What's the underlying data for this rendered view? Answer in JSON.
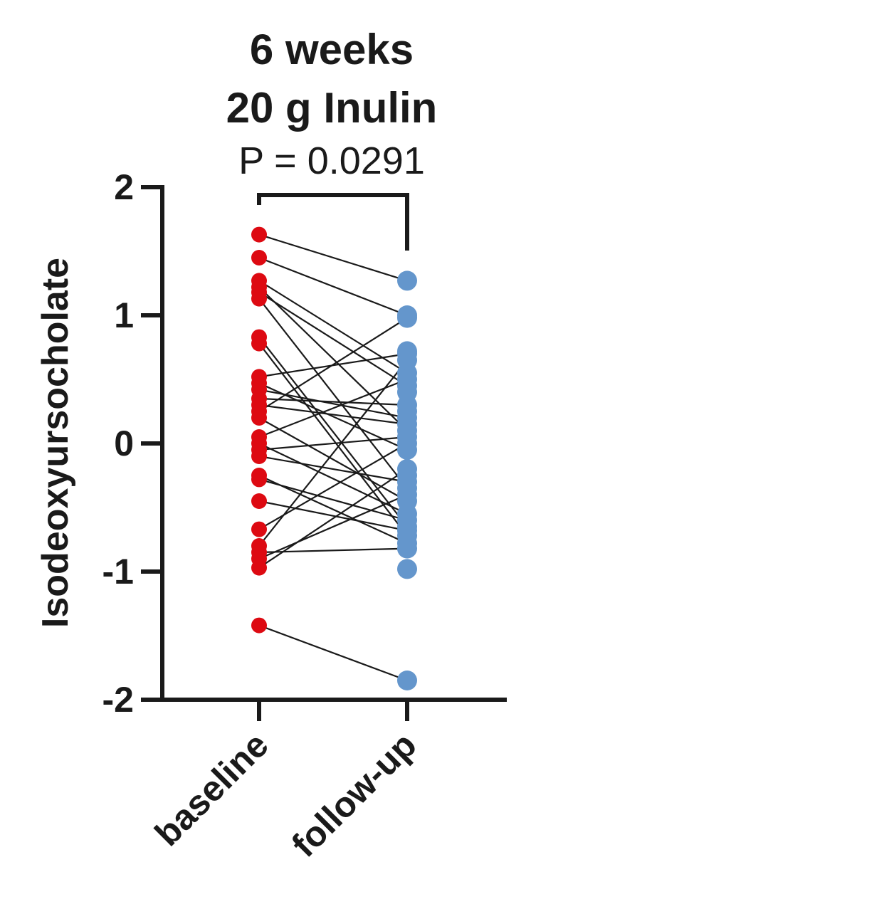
{
  "chart_data": {
    "type": "scatter",
    "title_line1": "6 weeks",
    "title_line2": "20 g Inulin",
    "annotation": "P = 0.0291",
    "ylabel": "Isodeoxyursocholate",
    "ylim": [
      -2,
      2
    ],
    "yticks": [
      2,
      1,
      0,
      -1,
      -2
    ],
    "categories": [
      "baseline",
      "follow-up"
    ],
    "colors": {
      "baseline": "#dd0a12",
      "follow-up": "#6496cc",
      "line": "#1a1a1a"
    },
    "pairs": [
      [
        1.63,
        1.27
      ],
      [
        1.45,
        1.0
      ],
      [
        1.27,
        0.55
      ],
      [
        1.22,
        0.1
      ],
      [
        1.18,
        0.45
      ],
      [
        1.13,
        -0.35
      ],
      [
        0.83,
        -0.65
      ],
      [
        0.78,
        -0.72
      ],
      [
        0.52,
        0.7
      ],
      [
        0.47,
        -0.05
      ],
      [
        0.42,
        0.2
      ],
      [
        0.35,
        0.3
      ],
      [
        0.3,
        0.15
      ],
      [
        0.25,
        0.98
      ],
      [
        0.2,
        -0.45
      ],
      [
        0.05,
        0.5
      ],
      [
        0.0,
        -0.55
      ],
      [
        -0.05,
        0.05
      ],
      [
        -0.1,
        -0.3
      ],
      [
        -0.25,
        -0.78
      ],
      [
        -0.28,
        -0.6
      ],
      [
        -0.45,
        -0.68
      ],
      [
        -0.67,
        0.0
      ],
      [
        -0.8,
        0.65
      ],
      [
        -0.85,
        -0.82
      ],
      [
        -0.9,
        -0.4
      ],
      [
        -0.97,
        -0.2
      ],
      [
        -1.42,
        -1.85
      ]
    ],
    "followup_only": [
      0.72,
      0.4,
      0.25,
      -0.25,
      -0.98
    ]
  }
}
